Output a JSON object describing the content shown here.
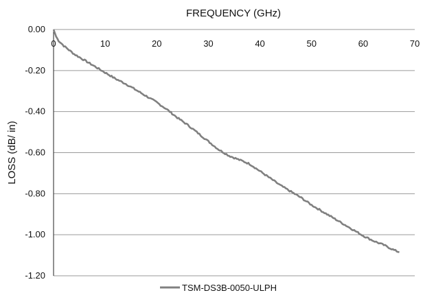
{
  "chart_data": {
    "type": "line",
    "xlabel": "FREQUENCY (GHz)",
    "ylabel": "LOSS (dB/ in)",
    "xlim": [
      0,
      70
    ],
    "ylim": [
      -1.2,
      0
    ],
    "x_ticks": [
      "0",
      "10",
      "20",
      "30",
      "40",
      "50",
      "60",
      "70"
    ],
    "y_ticks": [
      "0.00",
      "-0.20",
      "-0.40",
      "-0.60",
      "-0.80",
      "-1.00",
      "-1.20"
    ],
    "x_axis_position": "top",
    "grid": true,
    "legend_position": "bottom-center",
    "series": [
      {
        "name": "TSM-DS3B-0050-ULPH",
        "color": "#808080",
        "x": [
          0,
          0.5,
          1,
          2,
          3,
          4,
          5,
          6,
          7,
          8,
          9,
          10,
          12,
          14,
          16,
          18,
          20,
          22,
          24,
          26,
          28,
          30,
          32,
          34,
          36,
          38,
          40,
          42,
          44,
          46,
          48,
          50,
          52,
          54,
          56,
          58,
          60,
          62,
          64,
          66,
          67
        ],
        "y": [
          0,
          -0.035,
          -0.055,
          -0.08,
          -0.1,
          -0.12,
          -0.135,
          -0.15,
          -0.165,
          -0.18,
          -0.195,
          -0.21,
          -0.24,
          -0.265,
          -0.295,
          -0.325,
          -0.355,
          -0.39,
          -0.43,
          -0.465,
          -0.505,
          -0.545,
          -0.585,
          -0.615,
          -0.635,
          -0.655,
          -0.69,
          -0.725,
          -0.76,
          -0.79,
          -0.82,
          -0.855,
          -0.885,
          -0.915,
          -0.945,
          -0.975,
          -1.005,
          -1.03,
          -1.05,
          -1.075,
          -1.085
        ]
      }
    ]
  }
}
